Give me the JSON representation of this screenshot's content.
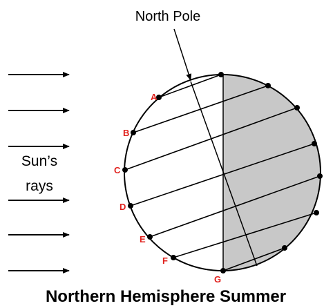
{
  "caption": "Northern Hemisphere Summer",
  "pole_label": "North Pole",
  "sun_label": [
    "Sun’s",
    "rays"
  ],
  "points": [
    "A",
    "B",
    "C",
    "D",
    "E",
    "F",
    "G"
  ]
}
